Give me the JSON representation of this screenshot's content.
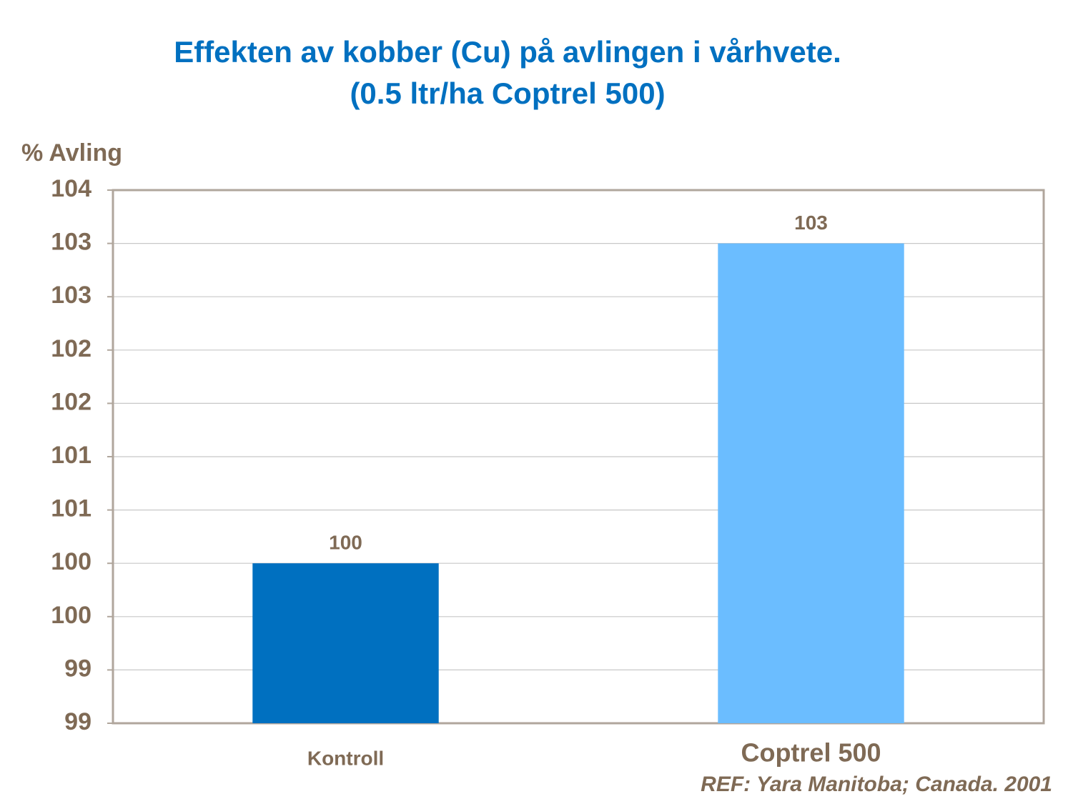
{
  "chart_data": {
    "type": "bar",
    "title": "Effekten av kobber (Cu) på avlingen i vårhvete.",
    "subtitle": "(0.5 ltr/ha Coptrel 500)",
    "y_label": "% Avling",
    "source": "REF: Yara Manitoba; Canada. 2001",
    "categories": [
      "Kontroll",
      "Coptrel 500"
    ],
    "values": [
      100,
      103
    ],
    "colors": [
      "#0070c0",
      "#6bbdff"
    ],
    "ylim": [
      98.5,
      103.5
    ],
    "yticks": [
      {
        "value": 98.5,
        "label": "99"
      },
      99,
      {
        "value": 99.5,
        "label": "100"
      },
      100,
      {
        "value": 100.5,
        "label": "101"
      },
      101,
      {
        "value": 101.5,
        "label": "102"
      },
      102,
      {
        "value": 102.5,
        "label": "103"
      },
      103,
      {
        "value": 103.5,
        "label": "104"
      }
    ],
    "grid": true
  }
}
